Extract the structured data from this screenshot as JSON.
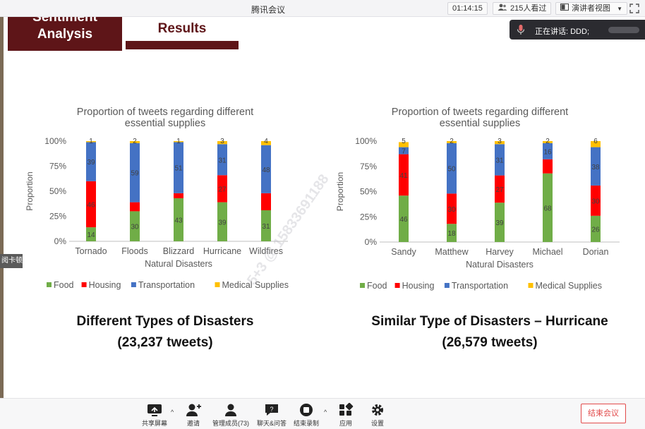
{
  "window": {
    "title": "腾讯会议",
    "timer": "01:14:15",
    "viewers": "215人看过",
    "view_mode": "演讲者视图"
  },
  "speaking": {
    "label": "正在讲话: DDD;"
  },
  "side_tag": "阅卡顿",
  "slide": {
    "header_left_line1": "Sentiment",
    "header_left_line2": "Analysis",
    "header_right": "Results",
    "watermark": "5+3 @ 15833691188",
    "caption_left_1": "Different Types of Disasters",
    "caption_left_2": "(23,237 tweets)",
    "caption_right_1": "Similar Type of Disasters – Hurricane",
    "caption_right_2": "(26,579 tweets)"
  },
  "chart_data": [
    {
      "type": "bar",
      "stacked": true,
      "title_line1": "Proportion  of tweets regarding different",
      "title_line2": "essential supplies",
      "xlabel": "Natural Disasters",
      "ylabel": "Proportion",
      "ylim": [
        0,
        100
      ],
      "yticks": [
        "0%",
        "25%",
        "50%",
        "75%",
        "100%"
      ],
      "categories": [
        "Tornado",
        "Floods",
        "Blizzard",
        "Hurricane",
        "Wildfires"
      ],
      "series": [
        {
          "name": "Food",
          "color": "#70ad47",
          "values": [
            14,
            30,
            43,
            39,
            31
          ],
          "labels": [
            "14",
            "30",
            "43",
            "39",
            "31"
          ]
        },
        {
          "name": "Housing",
          "color": "#ff0000",
          "values": [
            46,
            9,
            5,
            27,
            17
          ],
          "labels": [
            "46",
            "",
            "",
            "27",
            ""
          ]
        },
        {
          "name": "Transportation",
          "color": "#4472c4",
          "values": [
            39,
            59,
            51,
            31,
            48
          ],
          "labels": [
            "39",
            "59",
            "51",
            "31",
            "48"
          ]
        },
        {
          "name": "Medical Supplies",
          "color": "#ffc000",
          "values": [
            1,
            2,
            1,
            3,
            4
          ],
          "labels": [
            "1",
            "2",
            "1",
            "3",
            "4"
          ]
        }
      ],
      "legend_position": "bottom",
      "grid": false
    },
    {
      "type": "bar",
      "stacked": true,
      "title_line1": "Proportion of tweets regarding different",
      "title_line2": "essential supplies",
      "xlabel": "Natural Disasters",
      "ylabel": "Proportion",
      "ylim": [
        0,
        100
      ],
      "yticks": [
        "0%",
        "25%",
        "50%",
        "75%",
        "100%"
      ],
      "categories": [
        "Sandy",
        "Matthew",
        "Harvey",
        "Michael",
        "Dorian"
      ],
      "series": [
        {
          "name": "Food",
          "color": "#70ad47",
          "values": [
            46,
            18,
            39,
            68,
            26
          ],
          "labels": [
            "46",
            "18",
            "39",
            "68",
            "26"
          ]
        },
        {
          "name": "Housing",
          "color": "#ff0000",
          "values": [
            41,
            30,
            27,
            14,
            30
          ],
          "labels": [
            "41",
            "30",
            "27",
            "",
            "30"
          ]
        },
        {
          "name": "Transportation",
          "color": "#4472c4",
          "values": [
            7,
            50,
            31,
            16,
            38
          ],
          "labels": [
            "7",
            "50",
            "31",
            "16",
            "38"
          ]
        },
        {
          "name": "Medical Supplies",
          "color": "#ffc000",
          "values": [
            5,
            2,
            3,
            2,
            6
          ],
          "labels": [
            "5",
            "2",
            "3",
            "2",
            "6"
          ]
        }
      ],
      "legend_position": "bottom",
      "grid": false
    }
  ],
  "toolbar": {
    "share": "共享屏幕",
    "invite": "邀请",
    "members": "管理成员(73)",
    "chat": "聊天&问答",
    "record": "结束录制",
    "apps": "应用",
    "settings": "设置",
    "end": "结束会议"
  }
}
